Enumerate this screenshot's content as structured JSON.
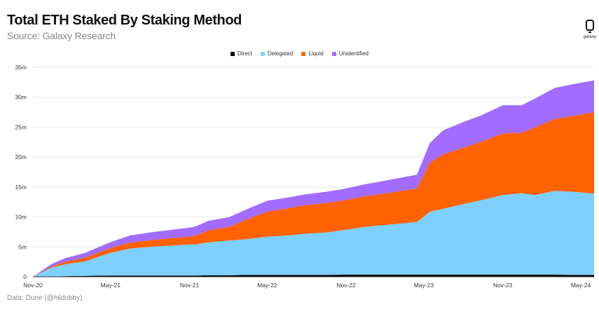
{
  "header": {
    "title": "Total ETH Staked By Staking Method",
    "subtitle": "Source: Galaxy Research",
    "logo_text": "galaxy"
  },
  "footer": {
    "text": "Data: Dune (@hildobby)"
  },
  "colors": {
    "Direct": "#000000",
    "Delegated": "#7DD0FF",
    "Liquid": "#FF6200",
    "Unidentified": "#A16CFF",
    "grid": "#e6e6e6",
    "axis": "#333333"
  },
  "chart_data": {
    "type": "area",
    "stacked": true,
    "x_unit": "date",
    "x": [
      "2020-11-01",
      "2020-12-15",
      "2021-01-15",
      "2021-03-01",
      "2021-05-01",
      "2021-06-15",
      "2021-08-01",
      "2021-09-15",
      "2021-11-01",
      "2021-11-15",
      "2021-12-15",
      "2022-02-01",
      "2022-03-15",
      "2022-05-01",
      "2022-06-15",
      "2022-08-01",
      "2022-09-15",
      "2022-11-01",
      "2022-12-15",
      "2023-01-15",
      "2023-03-01",
      "2023-04-15",
      "2023-05-15",
      "2023-06-15",
      "2023-08-01",
      "2023-09-15",
      "2023-11-01",
      "2023-12-15",
      "2024-01-15",
      "2024-03-01",
      "2024-04-15",
      "2024-06-01"
    ],
    "series": [
      {
        "name": "Direct",
        "values": [
          0,
          0.05,
          0.1,
          0.15,
          0.2,
          0.2,
          0.2,
          0.2,
          0.2,
          0.2,
          0.25,
          0.25,
          0.3,
          0.3,
          0.3,
          0.3,
          0.3,
          0.35,
          0.35,
          0.35,
          0.35,
          0.35,
          0.35,
          0.35,
          0.35,
          0.35,
          0.35,
          0.35,
          0.35,
          0.35,
          0.3,
          0.3
        ]
      },
      {
        "name": "Delegated",
        "values": [
          0,
          1.5,
          2.0,
          2.4,
          3.8,
          4.5,
          4.8,
          5.0,
          5.2,
          5.2,
          5.5,
          5.8,
          6.0,
          6.4,
          6.6,
          6.9,
          7.1,
          7.5,
          8.0,
          8.2,
          8.5,
          8.8,
          10.5,
          11.0,
          11.8,
          12.5,
          13.3,
          13.6,
          13.3,
          14.0,
          13.9,
          13.6
        ]
      },
      {
        "name": "Liquid",
        "values": [
          0,
          0.2,
          0.4,
          0.6,
          0.8,
          1.0,
          1.1,
          1.2,
          1.3,
          1.5,
          2.0,
          2.3,
          3.3,
          4.2,
          4.5,
          4.8,
          4.9,
          5.0,
          5.1,
          5.2,
          5.4,
          5.6,
          8.2,
          9.1,
          9.4,
          9.8,
          10.3,
          10.1,
          11.3,
          12.0,
          12.7,
          13.6
        ]
      },
      {
        "name": "Unidentified",
        "values": [
          0,
          0.4,
          0.6,
          0.8,
          1.0,
          1.2,
          1.3,
          1.4,
          1.5,
          1.5,
          1.6,
          1.6,
          1.7,
          1.8,
          1.8,
          1.8,
          1.9,
          1.9,
          2.0,
          2.1,
          2.2,
          2.3,
          3.3,
          4.0,
          4.3,
          4.4,
          4.7,
          4.6,
          4.8,
          5.2,
          5.3,
          5.3
        ]
      }
    ],
    "ylim": [
      0,
      35
    ],
    "yticks": [
      0,
      5,
      10,
      15,
      20,
      25,
      30,
      35
    ],
    "ytick_labels": [
      "0",
      "5m",
      "10m",
      "15m",
      "20m",
      "25m",
      "30m",
      "35m"
    ],
    "xticks": [
      {
        "date": "2020-11-01",
        "label": "Nov-20"
      },
      {
        "date": "2021-05-01",
        "label": "May-21"
      },
      {
        "date": "2021-11-01",
        "label": "Nov-21"
      },
      {
        "date": "2022-05-01",
        "label": "May-22"
      },
      {
        "date": "2022-11-01",
        "label": "Nov-22"
      },
      {
        "date": "2023-05-01",
        "label": "May-23"
      },
      {
        "date": "2023-11-01",
        "label": "Nov-23"
      },
      {
        "date": "2024-05-01",
        "label": "May-24"
      }
    ],
    "grid": true,
    "legend": "top-center"
  }
}
